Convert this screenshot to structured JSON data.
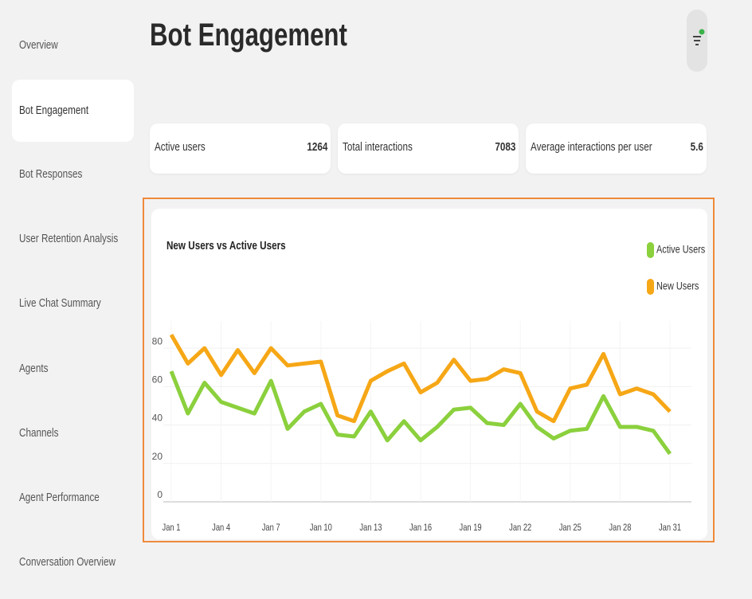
{
  "sidebar": {
    "items": [
      "Overview",
      "Bot Engagement",
      "Bot Responses",
      "User Retention Analysis",
      "Live Chat Summary",
      "Agents",
      "Channels",
      "Agent Performance",
      "Conversation Overview"
    ]
  },
  "header": {
    "title": "Bot Engagement"
  },
  "stats": [
    {
      "label": "Active users",
      "value": 1264
    },
    {
      "label": "Total interactions",
      "value": 7083
    },
    {
      "label": "Average interactions per user",
      "value": 5.6
    }
  ],
  "chart_data": {
    "type": "line",
    "title": "New Users vs Active Users",
    "categories": [
      "Jan 1",
      null,
      null,
      "Jan 4",
      null,
      null,
      "Jan 7",
      null,
      null,
      "Jan 10",
      null,
      null,
      "Jan 13",
      null,
      null,
      "Jan 16",
      null,
      null,
      "Jan 19",
      null,
      null,
      "Jan 22",
      null,
      null,
      "Jan 25",
      null,
      null,
      "Jan 28",
      null,
      null,
      "Jan 31"
    ],
    "series": [
      {
        "name": "Active Users",
        "color": "#8bd03d",
        "values": [
          68,
          46,
          62,
          52,
          49,
          46,
          63,
          38,
          47,
          51,
          35,
          34,
          47,
          32,
          42,
          32,
          39,
          48,
          49,
          41,
          40,
          51,
          39,
          33,
          37,
          38,
          55,
          39,
          39,
          37,
          25
        ]
      },
      {
        "name": "New Users",
        "color": "#f6a716",
        "values": [
          87,
          72,
          80,
          66,
          79,
          67,
          80,
          71,
          72,
          73,
          45,
          42,
          63,
          68,
          72,
          57,
          62,
          74,
          63,
          64,
          69,
          67,
          47,
          42,
          59,
          61,
          77,
          56,
          59,
          56,
          47
        ]
      }
    ],
    "ylim": [
      0,
      90
    ],
    "yticks": [
      0,
      20,
      40,
      60,
      80
    ],
    "grid": true,
    "legend": "top-right"
  }
}
